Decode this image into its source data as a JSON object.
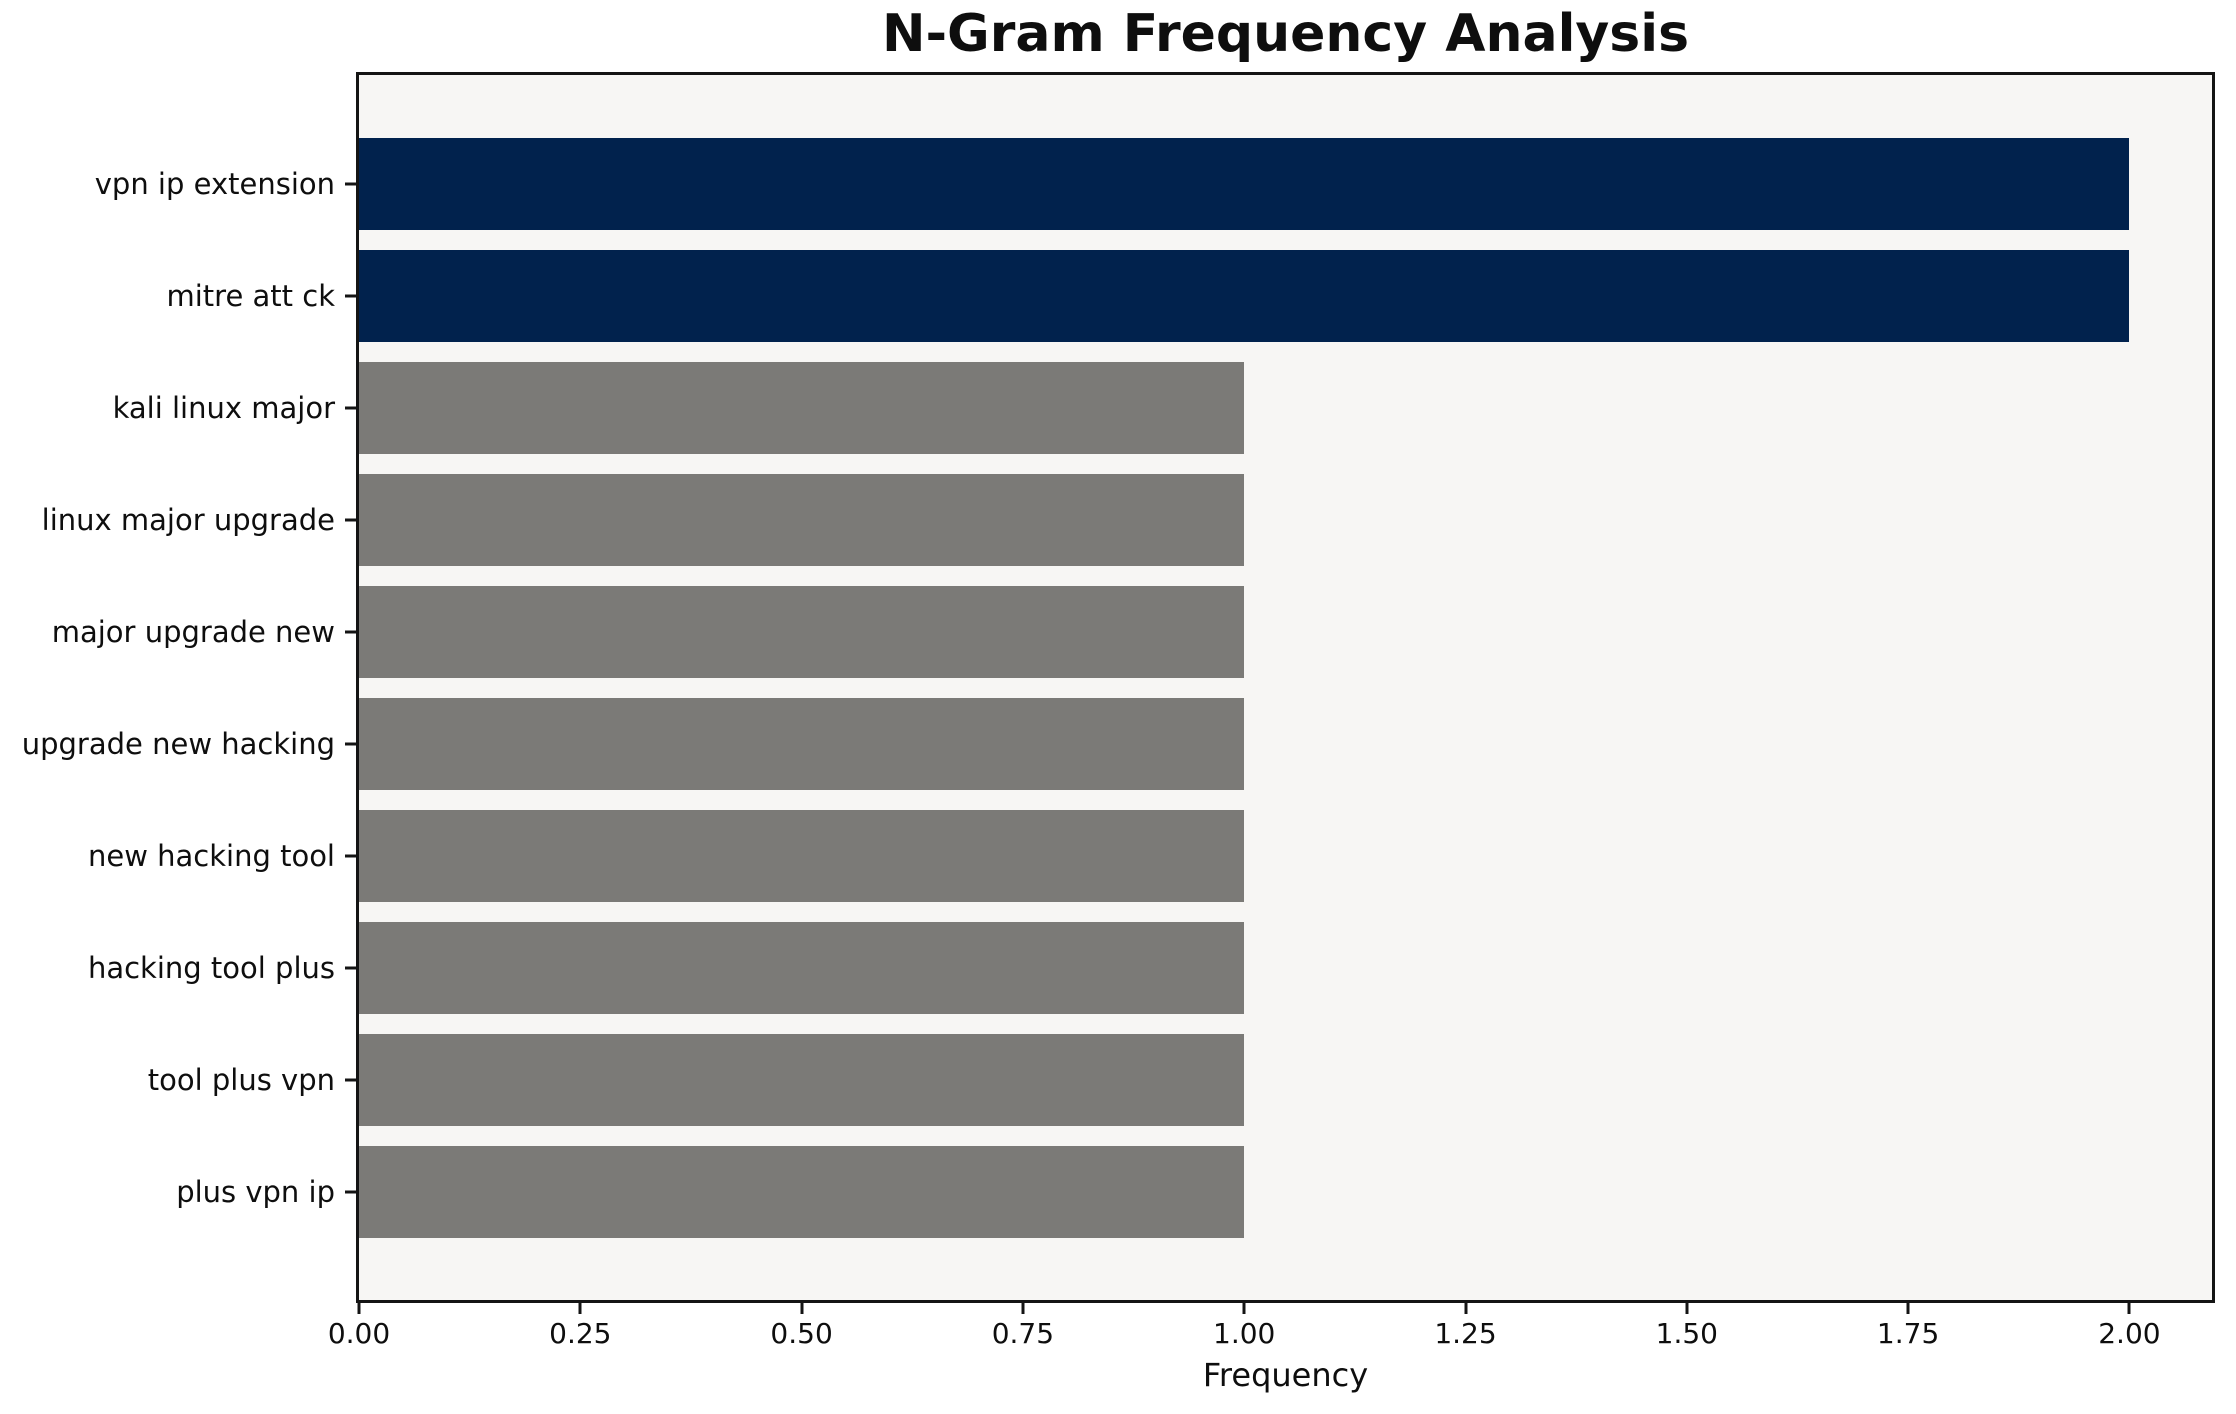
{
  "chart_data": {
    "type": "bar",
    "orientation": "horizontal",
    "title": "N-Gram Frequency Analysis",
    "xlabel": "Frequency",
    "ylabel": "",
    "categories": [
      "vpn ip extension",
      "mitre att ck",
      "kali linux major",
      "linux major upgrade",
      "major upgrade new",
      "upgrade new hacking",
      "new hacking tool",
      "hacking tool plus",
      "tool plus vpn",
      "plus vpn ip"
    ],
    "values": [
      2,
      2,
      1,
      1,
      1,
      1,
      1,
      1,
      1,
      1
    ],
    "bar_colors": [
      "#01224d",
      "#01224d",
      "#7b7a77",
      "#7b7a77",
      "#7b7a77",
      "#7b7a77",
      "#7b7a77",
      "#7b7a77",
      "#7b7a77",
      "#7b7a77"
    ],
    "xticks": [
      "0.00",
      "0.25",
      "0.50",
      "0.75",
      "1.00",
      "1.25",
      "1.50",
      "1.75",
      "2.00"
    ],
    "xlim": [
      0,
      2.0933
    ],
    "grid": false,
    "legend": false,
    "layout": {
      "bar_relative_height": 0.82
    },
    "colors": {
      "highlight": "#01224d",
      "default_bar": "#7b7a77",
      "plot_background": "#f7f6f4",
      "figure_background": "#ffffff",
      "frame": "#141414",
      "text": "#0e0e0e"
    }
  }
}
